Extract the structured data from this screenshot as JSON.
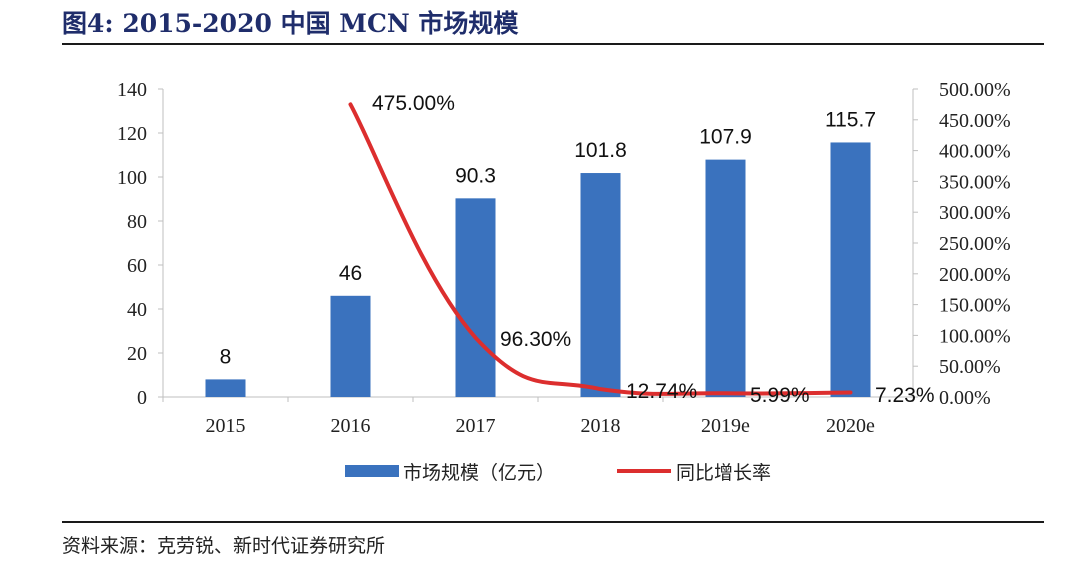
{
  "title": "图4:    2015-2020 中国 MCN 市场规模",
  "source": "资料来源：克劳锐、新时代证券研究所",
  "colors": {
    "bar": "#3a72be",
    "line": "#dc2e2e",
    "title": "#1f2d6b"
  },
  "chart_data": {
    "type": "bar",
    "categories": [
      "2015",
      "2016",
      "2017",
      "2018",
      "2019e",
      "2020e"
    ],
    "series": [
      {
        "name": "市场规模（亿元）",
        "type": "bar",
        "axis": "left",
        "values": [
          8,
          46,
          90.3,
          101.8,
          107.9,
          115.7
        ],
        "labels": [
          "8",
          "46",
          "90.3",
          "101.8",
          "107.9",
          "115.7"
        ]
      },
      {
        "name": "同比增长率",
        "type": "line",
        "axis": "right",
        "values": [
          null,
          475.0,
          96.3,
          12.74,
          5.99,
          7.23
        ],
        "labels": [
          "",
          "475.00%",
          "96.30%",
          "12.74%",
          "5.99%",
          "7.23%"
        ]
      }
    ],
    "y_left": {
      "min": 0,
      "max": 140,
      "ticks": [
        "0",
        "20",
        "40",
        "60",
        "80",
        "100",
        "120",
        "140"
      ]
    },
    "y_right": {
      "min": 0,
      "max": 500,
      "ticks": [
        "0.00%",
        "50.00%",
        "100.00%",
        "150.00%",
        "200.00%",
        "250.00%",
        "300.00%",
        "350.00%",
        "400.00%",
        "450.00%",
        "500.00%"
      ]
    },
    "grid": false,
    "legend": "bottom"
  }
}
